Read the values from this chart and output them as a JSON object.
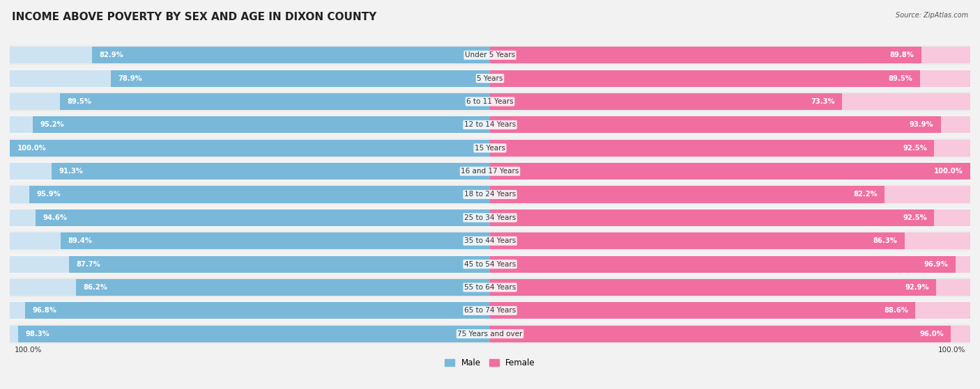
{
  "title": "INCOME ABOVE POVERTY BY SEX AND AGE IN DIXON COUNTY",
  "source": "Source: ZipAtlas.com",
  "categories": [
    "Under 5 Years",
    "5 Years",
    "6 to 11 Years",
    "12 to 14 Years",
    "15 Years",
    "16 and 17 Years",
    "18 to 24 Years",
    "25 to 34 Years",
    "35 to 44 Years",
    "45 to 54 Years",
    "55 to 64 Years",
    "65 to 74 Years",
    "75 Years and over"
  ],
  "male_values": [
    82.9,
    78.9,
    89.5,
    95.2,
    100.0,
    91.3,
    95.9,
    94.6,
    89.4,
    87.7,
    86.2,
    96.8,
    98.3
  ],
  "female_values": [
    89.8,
    89.5,
    73.3,
    93.9,
    92.5,
    100.0,
    82.2,
    92.5,
    86.3,
    96.9,
    92.9,
    88.6,
    96.0
  ],
  "male_color_full": "#7ab8d9",
  "male_color_light": "#cde3f2",
  "female_color_full": "#f06fa0",
  "female_color_light": "#f8c8dc",
  "background_color": "#f2f2f2",
  "row_color_even": "#e8e8e8",
  "row_color_odd": "#f2f2f2",
  "legend_male": "Male",
  "legend_female": "Female",
  "max_value": 100.0,
  "title_fontsize": 11,
  "label_fontsize": 7.5,
  "value_fontsize": 7.2,
  "bottom_label": "100.0%"
}
